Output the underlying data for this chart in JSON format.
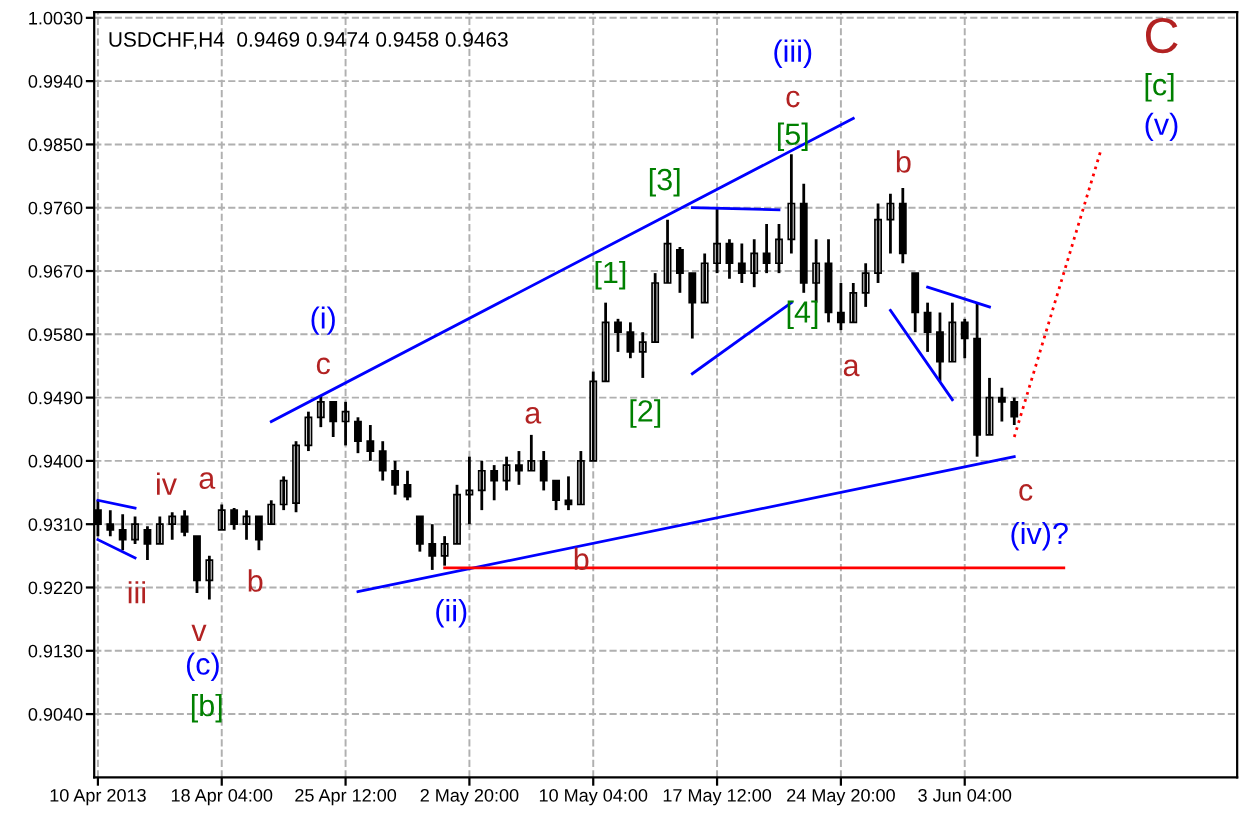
{
  "chart_data": {
    "type": "candlestick",
    "title": "USDCHF,H4  0.9469 0.9474 0.9458 0.9463",
    "categories": [
      "10 Apr 2013",
      null,
      null,
      null,
      null,
      null,
      null,
      null,
      null,
      null,
      "18 Apr 04:00",
      null,
      null,
      null,
      null,
      null,
      null,
      null,
      null,
      null,
      "25 Apr 12:00",
      null,
      null,
      null,
      null,
      null,
      null,
      null,
      null,
      null,
      "2 May 20:00",
      null,
      null,
      null,
      null,
      null,
      null,
      null,
      null,
      null,
      "10 May 04:00",
      null,
      null,
      null,
      null,
      null,
      null,
      null,
      null,
      null,
      "17 May 12:00",
      null,
      null,
      null,
      null,
      null,
      null,
      null,
      null,
      null,
      "24 May 20:00",
      null,
      null,
      null,
      null,
      null,
      null,
      null,
      null,
      null,
      "3 Jun 04:00",
      null,
      null,
      null,
      null,
      null,
      null,
      null,
      null,
      null,
      null,
      null
    ],
    "ohlc": [
      [
        0.933,
        0.9344,
        0.9293,
        0.931
      ],
      [
        0.931,
        0.933,
        0.9293,
        0.9302
      ],
      [
        0.9302,
        0.9324,
        0.9273,
        0.9288
      ],
      [
        0.9288,
        0.9321,
        0.9282,
        0.931
      ],
      [
        0.9302,
        0.9307,
        0.9259,
        0.9282
      ],
      [
        0.9282,
        0.9321,
        0.9282,
        0.931
      ],
      [
        0.931,
        0.9327,
        0.9288,
        0.9321
      ],
      [
        0.9321,
        0.933,
        0.9293,
        0.9299
      ],
      [
        0.9293,
        0.9293,
        0.9212,
        0.923
      ],
      [
        0.923,
        0.9265,
        0.9203,
        0.9259
      ],
      [
        0.9302,
        0.9338,
        0.9302,
        0.933
      ],
      [
        0.933,
        0.9333,
        0.9302,
        0.931
      ],
      [
        0.931,
        0.933,
        0.9288,
        0.9321
      ],
      [
        0.9321,
        0.9321,
        0.9273,
        0.9288
      ],
      [
        0.931,
        0.9344,
        0.931,
        0.9338
      ],
      [
        0.9338,
        0.9378,
        0.933,
        0.9372
      ],
      [
        0.934,
        0.9428,
        0.9327,
        0.9422
      ],
      [
        0.9422,
        0.947,
        0.9414,
        0.9462
      ],
      [
        0.9462,
        0.9493,
        0.9448,
        0.9484
      ],
      [
        0.9484,
        0.9484,
        0.9434,
        0.9456
      ],
      [
        0.9456,
        0.9484,
        0.9422,
        0.947
      ],
      [
        0.9456,
        0.9462,
        0.9411,
        0.9428
      ],
      [
        0.9428,
        0.9451,
        0.94,
        0.9414
      ],
      [
        0.9414,
        0.9428,
        0.9372,
        0.9386
      ],
      [
        0.9386,
        0.94,
        0.9352,
        0.9366
      ],
      [
        0.9366,
        0.9386,
        0.9344,
        0.9349
      ],
      [
        0.9321,
        0.9321,
        0.9271,
        0.9282
      ],
      [
        0.9282,
        0.931,
        0.9245,
        0.9265
      ],
      [
        0.9265,
        0.9293,
        0.9251,
        0.9282
      ],
      [
        0.9282,
        0.9366,
        0.9282,
        0.9352
      ],
      [
        0.9352,
        0.9406,
        0.931,
        0.9358
      ],
      [
        0.9358,
        0.94,
        0.933,
        0.9386
      ],
      [
        0.9386,
        0.9394,
        0.9344,
        0.9372
      ],
      [
        0.9372,
        0.9406,
        0.9358,
        0.9394
      ],
      [
        0.9394,
        0.9414,
        0.9366,
        0.9386
      ],
      [
        0.9386,
        0.9437,
        0.9386,
        0.94
      ],
      [
        0.94,
        0.9414,
        0.9358,
        0.9372
      ],
      [
        0.9372,
        0.9372,
        0.933,
        0.9344
      ],
      [
        0.9344,
        0.9378,
        0.933,
        0.9338
      ],
      [
        0.9338,
        0.9414,
        0.9338,
        0.94
      ],
      [
        0.94,
        0.9527,
        0.94,
        0.9513
      ],
      [
        0.9513,
        0.9625,
        0.9513,
        0.9597
      ],
      [
        0.9597,
        0.9602,
        0.9555,
        0.9583
      ],
      [
        0.9583,
        0.9597,
        0.9546,
        0.9555
      ],
      [
        0.9555,
        0.9583,
        0.9518,
        0.9569
      ],
      [
        0.9569,
        0.9667,
        0.9569,
        0.9653
      ],
      [
        0.9653,
        0.9743,
        0.9653,
        0.9709
      ],
      [
        0.97,
        0.9704,
        0.9639,
        0.9667
      ],
      [
        0.9667,
        0.9667,
        0.9574,
        0.9625
      ],
      [
        0.9625,
        0.9695,
        0.9625,
        0.9681
      ],
      [
        0.9681,
        0.976,
        0.9667,
        0.9709
      ],
      [
        0.9709,
        0.9715,
        0.9659,
        0.9681
      ],
      [
        0.9681,
        0.9709,
        0.9653,
        0.9667
      ],
      [
        0.9667,
        0.9715,
        0.9647,
        0.9695
      ],
      [
        0.9695,
        0.9737,
        0.9667,
        0.9681
      ],
      [
        0.9681,
        0.9737,
        0.9667,
        0.9715
      ],
      [
        0.9715,
        0.9836,
        0.9695,
        0.9766
      ],
      [
        0.9766,
        0.9794,
        0.9639,
        0.9653
      ],
      [
        0.9653,
        0.9715,
        0.9625,
        0.9681
      ],
      [
        0.9681,
        0.9715,
        0.9597,
        0.9611
      ],
      [
        0.9611,
        0.9653,
        0.9586,
        0.9597
      ],
      [
        0.9597,
        0.9653,
        0.9597,
        0.9639
      ],
      [
        0.9639,
        0.9681,
        0.9619,
        0.9667
      ],
      [
        0.9667,
        0.9766,
        0.9653,
        0.9743
      ],
      [
        0.9743,
        0.978,
        0.9695,
        0.9766
      ],
      [
        0.9766,
        0.9788,
        0.9681,
        0.9695
      ],
      [
        0.9667,
        0.9667,
        0.9583,
        0.9611
      ],
      [
        0.9611,
        0.9625,
        0.9555,
        0.9583
      ],
      [
        0.9583,
        0.9611,
        0.9513,
        0.9541
      ],
      [
        0.9541,
        0.9625,
        0.9541,
        0.9597
      ],
      [
        0.9597,
        0.9602,
        0.9546,
        0.9574
      ],
      [
        0.9574,
        0.9625,
        0.9406,
        0.9437
      ],
      [
        0.9437,
        0.9518,
        0.9437,
        0.949
      ],
      [
        0.949,
        0.9504,
        0.9456,
        0.9484
      ],
      [
        0.9484,
        0.949,
        0.9451,
        0.9463
      ],
      null,
      null,
      null,
      null,
      null,
      null,
      null
    ],
    "series": [
      {
        "type": "line",
        "color": "#0000ff",
        "values": [
          null,
          null,
          null,
          null,
          null,
          null,
          null,
          null,
          null,
          null,
          null,
          null,
          null,
          null,
          0.9456,
          null,
          null,
          null,
          null,
          null,
          null,
          null,
          null,
          null,
          null,
          null,
          null,
          null,
          null,
          null,
          null,
          null,
          null,
          null,
          null,
          null,
          null,
          null,
          null,
          null,
          null,
          null,
          null,
          null,
          null,
          null,
          null,
          null,
          null,
          null,
          null,
          null,
          null,
          null,
          null,
          null,
          null,
          null,
          null,
          null,
          null,
          0.9887,
          null,
          null,
          null,
          null,
          null,
          null,
          null,
          null,
          null,
          null,
          null,
          null,
          null,
          null,
          null,
          null,
          null,
          null,
          null,
          null
        ]
      },
      {
        "type": "line",
        "color": "#0000ff",
        "values": [
          null,
          null,
          null,
          null,
          null,
          null,
          null,
          null,
          null,
          null,
          null,
          null,
          null,
          null,
          null,
          null,
          null,
          null,
          null,
          null,
          null,
          0.9214,
          null,
          null,
          null,
          null,
          null,
          null,
          null,
          null,
          null,
          null,
          null,
          null,
          null,
          null,
          null,
          null,
          null,
          null,
          null,
          null,
          null,
          null,
          null,
          null,
          null,
          null,
          null,
          null,
          null,
          null,
          null,
          null,
          null,
          null,
          null,
          null,
          null,
          null,
          null,
          null,
          null,
          null,
          null,
          null,
          null,
          null,
          null,
          null,
          null,
          null,
          null,
          null,
          0.9406,
          null,
          null,
          null,
          null,
          null,
          null,
          null
        ]
      },
      {
        "type": "line",
        "color": "#0000ff",
        "values": [
          0.9344,
          null,
          null,
          0.9333,
          null,
          null,
          null,
          null,
          null,
          null,
          null,
          null,
          null,
          null,
          null,
          null,
          null,
          null,
          null,
          null,
          null,
          null,
          null,
          null,
          null,
          null,
          null,
          null,
          null,
          null,
          null,
          null,
          null,
          null,
          null,
          null,
          null,
          null,
          null,
          null,
          null,
          null,
          null,
          null,
          null,
          null,
          null,
          null,
          null,
          null,
          null,
          null,
          null,
          null,
          null,
          null,
          null,
          null,
          null,
          null,
          null,
          null,
          null,
          null,
          null,
          null,
          null,
          null,
          null,
          null,
          null,
          null,
          null,
          null,
          null,
          null,
          null,
          null,
          null,
          null,
          null,
          null
        ]
      },
      {
        "type": "line",
        "color": "#0000ff",
        "values": [
          0.9288,
          null,
          null,
          0.9262,
          null,
          null,
          null,
          null,
          null,
          null,
          null,
          null,
          null,
          null,
          null,
          null,
          null,
          null,
          null,
          null,
          null,
          null,
          null,
          null,
          null,
          null,
          null,
          null,
          null,
          null,
          null,
          null,
          null,
          null,
          null,
          null,
          null,
          null,
          null,
          null,
          null,
          null,
          null,
          null,
          null,
          null,
          null,
          null,
          null,
          null,
          null,
          null,
          null,
          null,
          null,
          null,
          null,
          null,
          null,
          null,
          null,
          null,
          null,
          null,
          null,
          null,
          null,
          null,
          null,
          null,
          null,
          null,
          null,
          null,
          null,
          null,
          null,
          null,
          null,
          null,
          null,
          null
        ]
      },
      {
        "type": "line",
        "color": "#0000ff",
        "values": [
          null,
          null,
          null,
          null,
          null,
          null,
          null,
          null,
          null,
          null,
          null,
          null,
          null,
          null,
          null,
          null,
          null,
          null,
          null,
          null,
          null,
          null,
          null,
          null,
          null,
          null,
          null,
          null,
          null,
          null,
          null,
          null,
          null,
          null,
          null,
          null,
          null,
          null,
          null,
          null,
          null,
          null,
          null,
          null,
          null,
          null,
          null,
          null,
          0.976,
          null,
          null,
          null,
          null,
          null,
          null,
          0.9757,
          null,
          null,
          null,
          null,
          null,
          null,
          null,
          null,
          null,
          null,
          null,
          null,
          null,
          null,
          null,
          null,
          null,
          null,
          null,
          null,
          null,
          null,
          null,
          null,
          null,
          null
        ]
      },
      {
        "type": "line",
        "color": "#0000ff",
        "values": [
          null,
          null,
          null,
          null,
          null,
          null,
          null,
          null,
          null,
          null,
          null,
          null,
          null,
          null,
          null,
          null,
          null,
          null,
          null,
          null,
          null,
          null,
          null,
          null,
          null,
          null,
          null,
          null,
          null,
          null,
          null,
          null,
          null,
          null,
          null,
          null,
          null,
          null,
          null,
          null,
          null,
          null,
          null,
          null,
          null,
          null,
          null,
          null,
          0.9524,
          null,
          null,
          null,
          null,
          null,
          null,
          null,
          0.9625,
          null,
          null,
          null,
          null,
          null,
          null,
          null,
          null,
          null,
          null,
          null,
          null,
          null,
          null,
          null,
          null,
          null,
          null,
          null,
          null,
          null,
          null,
          null,
          null,
          null
        ]
      },
      {
        "type": "line",
        "color": "#0000ff",
        "values": [
          null,
          null,
          null,
          null,
          null,
          null,
          null,
          null,
          null,
          null,
          null,
          null,
          null,
          null,
          null,
          null,
          null,
          null,
          null,
          null,
          null,
          null,
          null,
          null,
          null,
          null,
          null,
          null,
          null,
          null,
          null,
          null,
          null,
          null,
          null,
          null,
          null,
          null,
          null,
          null,
          null,
          null,
          null,
          null,
          null,
          null,
          null,
          null,
          null,
          null,
          null,
          null,
          null,
          null,
          null,
          null,
          null,
          null,
          null,
          null,
          null,
          null,
          null,
          null,
          null,
          null,
          null,
          0.9647,
          null,
          null,
          null,
          null,
          0.9619,
          null,
          null,
          null,
          null,
          null,
          null,
          null,
          null,
          null
        ]
      },
      {
        "type": "line",
        "color": "#0000ff",
        "values": [
          null,
          null,
          null,
          null,
          null,
          null,
          null,
          null,
          null,
          null,
          null,
          null,
          null,
          null,
          null,
          null,
          null,
          null,
          null,
          null,
          null,
          null,
          null,
          null,
          null,
          null,
          null,
          null,
          null,
          null,
          null,
          null,
          null,
          null,
          null,
          null,
          null,
          null,
          null,
          null,
          null,
          null,
          null,
          null,
          null,
          null,
          null,
          null,
          null,
          null,
          null,
          null,
          null,
          null,
          null,
          null,
          null,
          null,
          null,
          null,
          null,
          null,
          null,
          null,
          0.9614,
          null,
          null,
          null,
          null,
          0.9487,
          null,
          null,
          null,
          null,
          null,
          null,
          null,
          null,
          null,
          null,
          null,
          null
        ]
      },
      {
        "type": "line",
        "color": "#ff0000",
        "values": [
          null,
          null,
          null,
          null,
          null,
          null,
          null,
          null,
          null,
          null,
          null,
          null,
          null,
          null,
          null,
          null,
          null,
          null,
          null,
          null,
          null,
          null,
          null,
          null,
          null,
          null,
          null,
          null,
          0.9248,
          null,
          null,
          null,
          null,
          null,
          null,
          null,
          null,
          null,
          null,
          null,
          null,
          null,
          null,
          null,
          null,
          null,
          null,
          null,
          null,
          null,
          null,
          null,
          null,
          null,
          null,
          null,
          null,
          null,
          null,
          null,
          null,
          null,
          null,
          null,
          null,
          null,
          null,
          null,
          null,
          null,
          null,
          null,
          null,
          null,
          null,
          null,
          null,
          null,
          0.9248,
          null,
          null,
          null
        ]
      },
      {
        "type": "line",
        "color": "#ff0000",
        "line_style": "dotted",
        "values": [
          null,
          null,
          null,
          null,
          null,
          null,
          null,
          null,
          null,
          null,
          null,
          null,
          null,
          null,
          null,
          null,
          null,
          null,
          null,
          null,
          null,
          null,
          null,
          null,
          null,
          null,
          null,
          null,
          null,
          null,
          null,
          null,
          null,
          null,
          null,
          null,
          null,
          null,
          null,
          null,
          null,
          null,
          null,
          null,
          null,
          null,
          null,
          null,
          null,
          null,
          null,
          null,
          null,
          null,
          null,
          null,
          null,
          null,
          null,
          null,
          null,
          null,
          null,
          null,
          null,
          null,
          null,
          null,
          null,
          null,
          null,
          null,
          null,
          null,
          0.9434,
          null,
          null,
          null,
          null,
          null,
          null,
          0.9842
        ]
      }
    ],
    "annotations": [
      "iv",
      "a",
      "iii",
      "b",
      "v",
      "(c)",
      "[b]",
      "c",
      "(i)",
      "a",
      "b",
      "(ii)",
      "[1]",
      "[2]",
      "[3]",
      "[4]",
      "[5]",
      "c",
      "(iii)",
      "a",
      "b",
      "c",
      "(iv)?",
      "C",
      "[c]",
      "(v)"
    ],
    "ylim": [
      0.895,
      1.0038
    ],
    "yticks": [
      {
        "value": 0.904,
        "label": "0.9040"
      },
      {
        "value": 0.913,
        "label": "0.9130"
      },
      {
        "value": 0.922,
        "label": "0.9220"
      },
      {
        "value": 0.931,
        "label": "0.9310"
      },
      {
        "value": 0.94,
        "label": "0.9400"
      },
      {
        "value": 0.949,
        "label": "0.9490"
      },
      {
        "value": 0.958,
        "label": "0.9580"
      },
      {
        "value": 0.967,
        "label": "0.9670"
      },
      {
        "value": 0.976,
        "label": "0.9760"
      },
      {
        "value": 0.985,
        "label": "0.9850"
      },
      {
        "value": 0.994,
        "label": "0.9940"
      },
      {
        "value": 1.003,
        "label": "1.0030"
      }
    ],
    "grid": true
  }
}
